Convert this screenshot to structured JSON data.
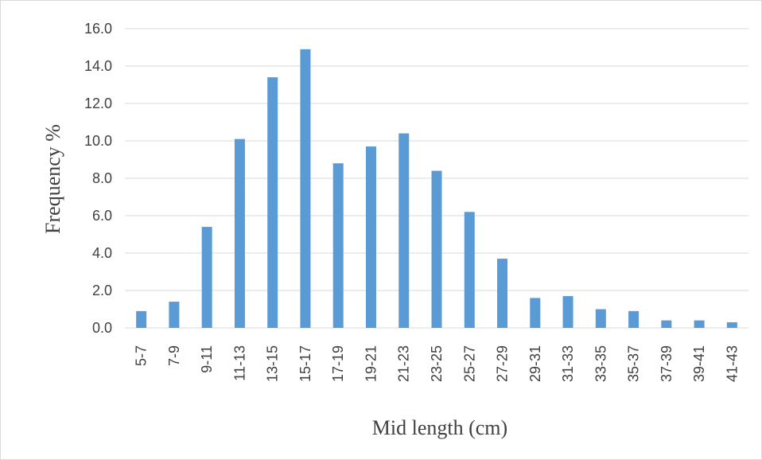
{
  "chart_data": {
    "type": "bar",
    "title": "",
    "xlabel": "Mid length (cm)",
    "ylabel": "Frequency %",
    "categories": [
      "5-7",
      "7-9",
      "9-11",
      "11-13",
      "13-15",
      "15-17",
      "17-19",
      "19-21",
      "21-23",
      "23-25",
      "25-27",
      "27-29",
      "29-31",
      "31-33",
      "33-35",
      "35-37",
      "37-39",
      "39-41",
      "41-43"
    ],
    "values": [
      0.9,
      1.4,
      5.4,
      10.1,
      13.4,
      14.9,
      8.8,
      9.7,
      10.4,
      8.4,
      6.2,
      3.7,
      1.6,
      1.7,
      1.0,
      0.9,
      0.4,
      0.4,
      0.3
    ],
    "ylim": [
      0,
      16
    ],
    "yticks": [
      "0.0",
      "2.0",
      "4.0",
      "6.0",
      "8.0",
      "10.0",
      "12.0",
      "14.0",
      "16.0"
    ],
    "grid": true,
    "legend": "none",
    "bar_color": "#5b9bd5",
    "grid_color": "#d9d9d9",
    "text_color": "#404040"
  }
}
